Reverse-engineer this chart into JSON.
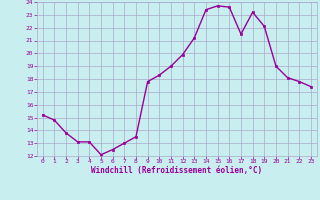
{
  "hours": [
    0,
    1,
    2,
    3,
    4,
    5,
    6,
    7,
    8,
    9,
    10,
    11,
    12,
    13,
    14,
    15,
    16,
    17,
    18,
    19,
    20,
    21,
    22,
    23
  ],
  "values": [
    15.2,
    14.8,
    13.8,
    13.1,
    13.1,
    12.1,
    12.5,
    13.0,
    13.5,
    17.8,
    18.3,
    19.0,
    19.9,
    21.2,
    23.4,
    23.7,
    23.6,
    21.5,
    23.2,
    22.1,
    19.0,
    18.1,
    17.8,
    17.4
  ],
  "line_color": "#990099",
  "marker": "s",
  "marker_size": 2,
  "linewidth": 1.0,
  "bg_color": "#c8eef0",
  "grid_color": "#aaaacc",
  "xlabel": "Windchill (Refroidissement éolien,°C)",
  "xlabel_color": "#990099",
  "tick_color": "#990099",
  "ylim": [
    12,
    24
  ],
  "yticks": [
    12,
    13,
    14,
    15,
    16,
    17,
    18,
    19,
    20,
    21,
    22,
    23,
    24
  ],
  "xlim": [
    0,
    23
  ],
  "xticks": [
    0,
    1,
    2,
    3,
    4,
    5,
    6,
    7,
    8,
    9,
    10,
    11,
    12,
    13,
    14,
    15,
    16,
    17,
    18,
    19,
    20,
    21,
    22,
    23
  ]
}
